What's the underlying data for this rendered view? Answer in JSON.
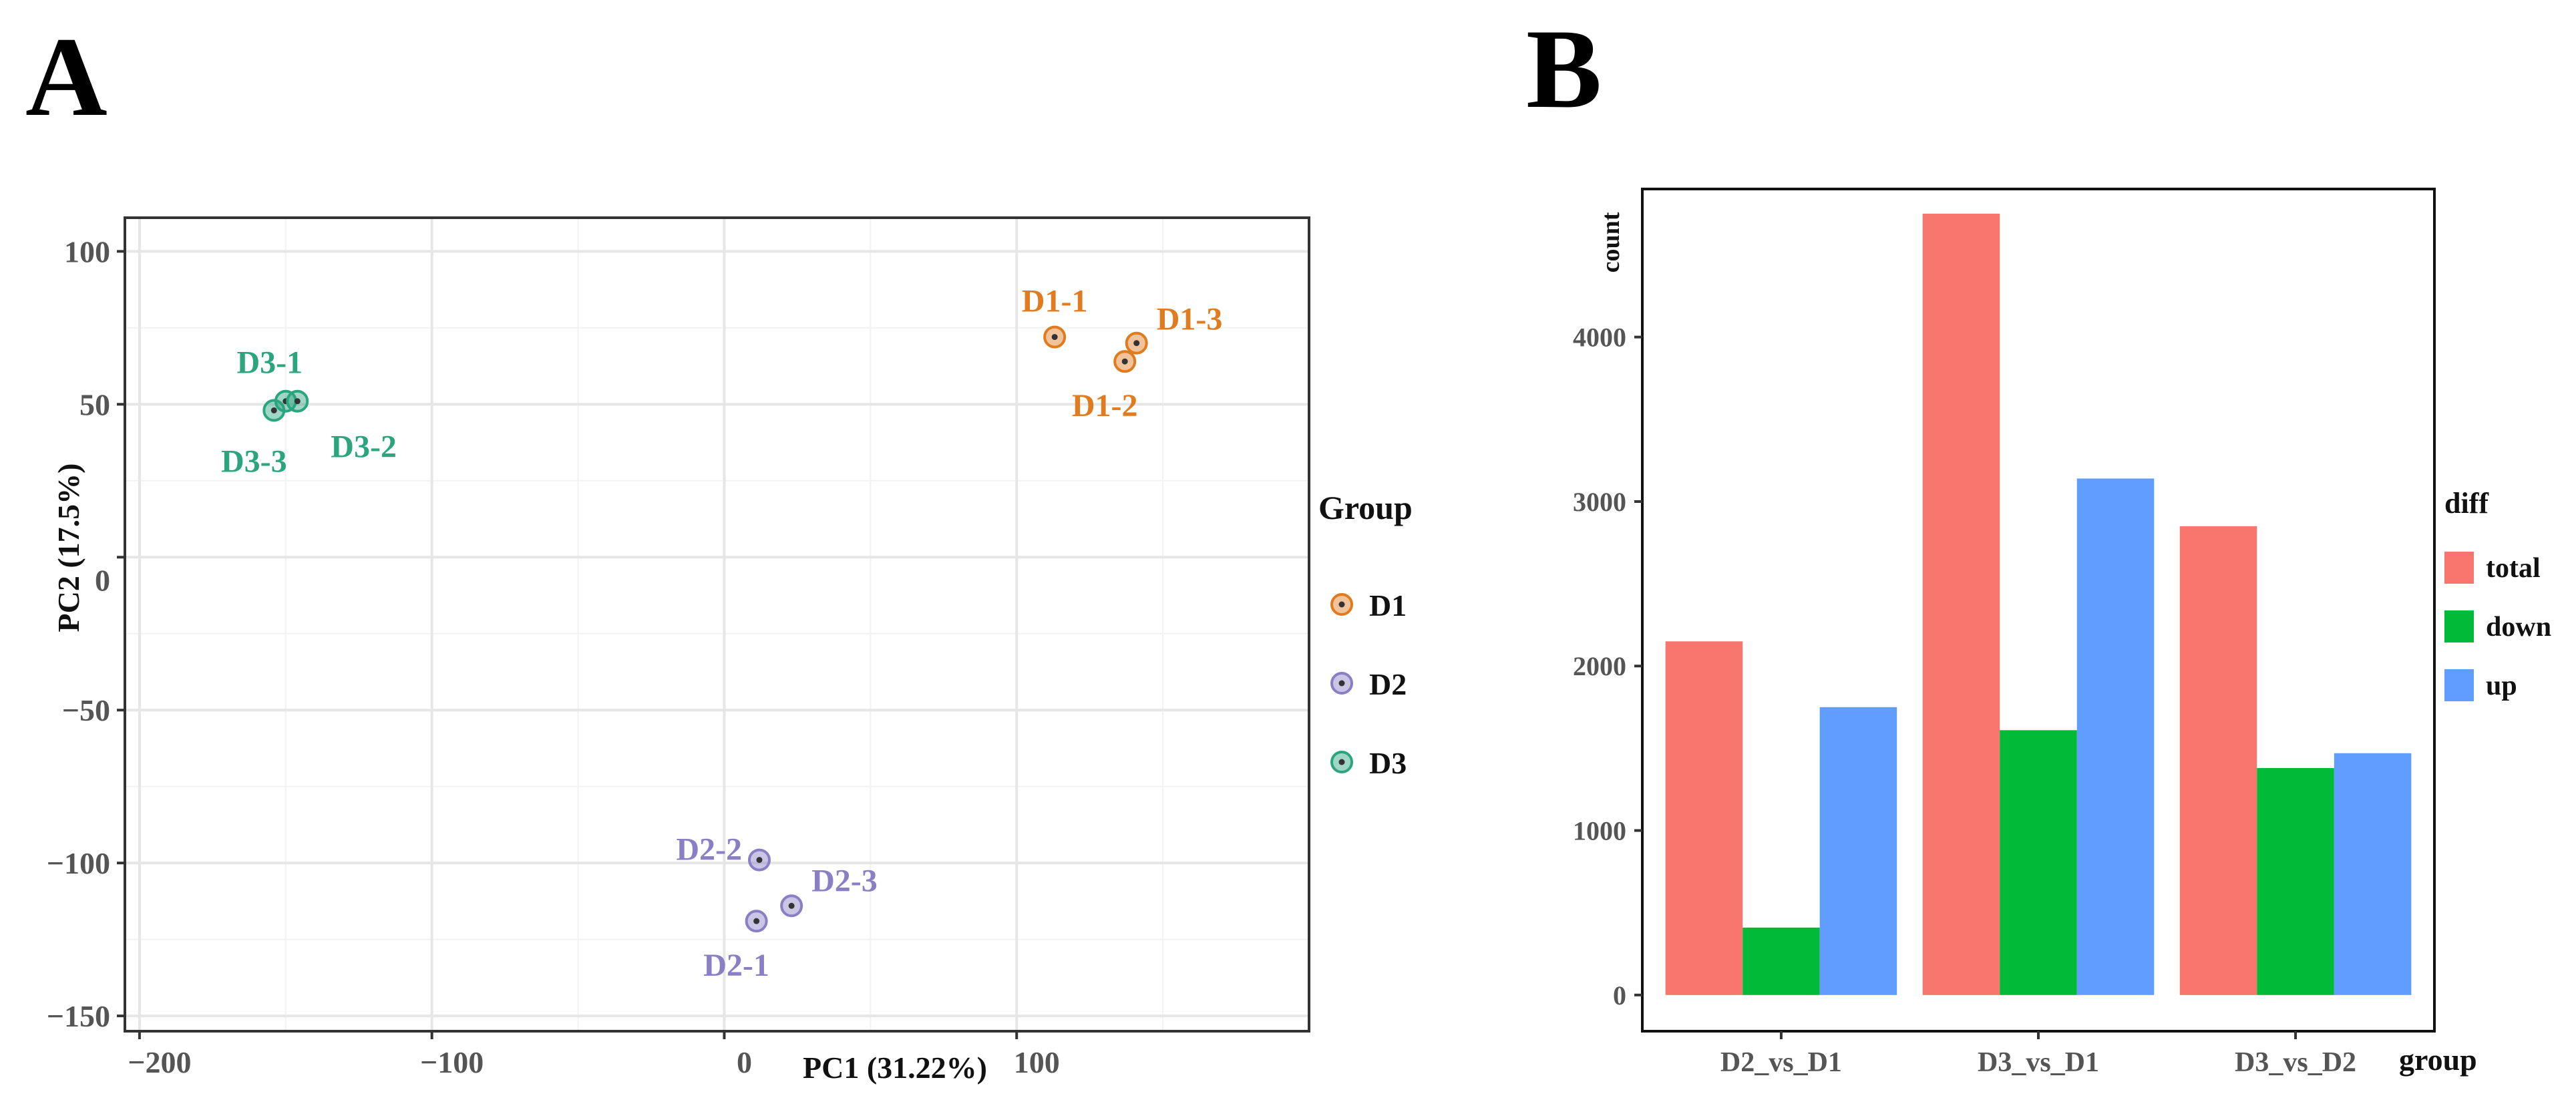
{
  "panels": {
    "a_letter": "A",
    "b_letter": "B"
  },
  "chart_data": [
    {
      "type": "scatter",
      "xlabel": "PC1 (31.22%)",
      "ylabel": "PC2 (17.5%)",
      "xlim": [
        -205,
        200
      ],
      "ylim": [
        -155,
        111
      ],
      "xticks": [
        -200,
        -100,
        0,
        100
      ],
      "yticks": [
        100,
        50,
        0,
        -50,
        -100,
        -150
      ],
      "grid": true,
      "legend": {
        "title": "Group",
        "position": "right"
      },
      "series": [
        {
          "name": "D1",
          "color": "#E07B1F",
          "points": [
            {
              "label": "D1-1",
              "x": 113,
              "y": 72
            },
            {
              "label": "D1-2",
              "x": 137,
              "y": 64
            },
            {
              "label": "D1-3",
              "x": 141,
              "y": 70
            }
          ]
        },
        {
          "name": "D2",
          "color": "#8A7FC4",
          "points": [
            {
              "label": "D2-1",
              "x": 11,
              "y": -119
            },
            {
              "label": "D2-2",
              "x": 12,
              "y": -99
            },
            {
              "label": "D2-3",
              "x": 23,
              "y": -114
            }
          ]
        },
        {
          "name": "D3",
          "color": "#2BA57E",
          "points": [
            {
              "label": "D3-1",
              "x": -150,
              "y": 51
            },
            {
              "label": "D3-2",
              "x": -146,
              "y": 51
            },
            {
              "label": "D3-3",
              "x": -154,
              "y": 48
            }
          ]
        }
      ]
    },
    {
      "type": "bar",
      "categories": [
        "D2_vs_D1",
        "D3_vs_D1",
        "D3_vs_D2"
      ],
      "xlabel": "group",
      "ylabel": "count",
      "ylim": [
        -220,
        4900
      ],
      "yticks": [
        0,
        1000,
        2000,
        3000,
        4000
      ],
      "grid": false,
      "legend": {
        "title": "diff",
        "position": "right"
      },
      "series": [
        {
          "name": "total",
          "color": "#F8766D",
          "values": [
            2150,
            4750,
            2850
          ]
        },
        {
          "name": "down",
          "color": "#00BA38",
          "values": [
            410,
            1610,
            1380
          ]
        },
        {
          "name": "up",
          "color": "#619CFF",
          "values": [
            1750,
            3140,
            1470
          ]
        }
      ]
    }
  ]
}
